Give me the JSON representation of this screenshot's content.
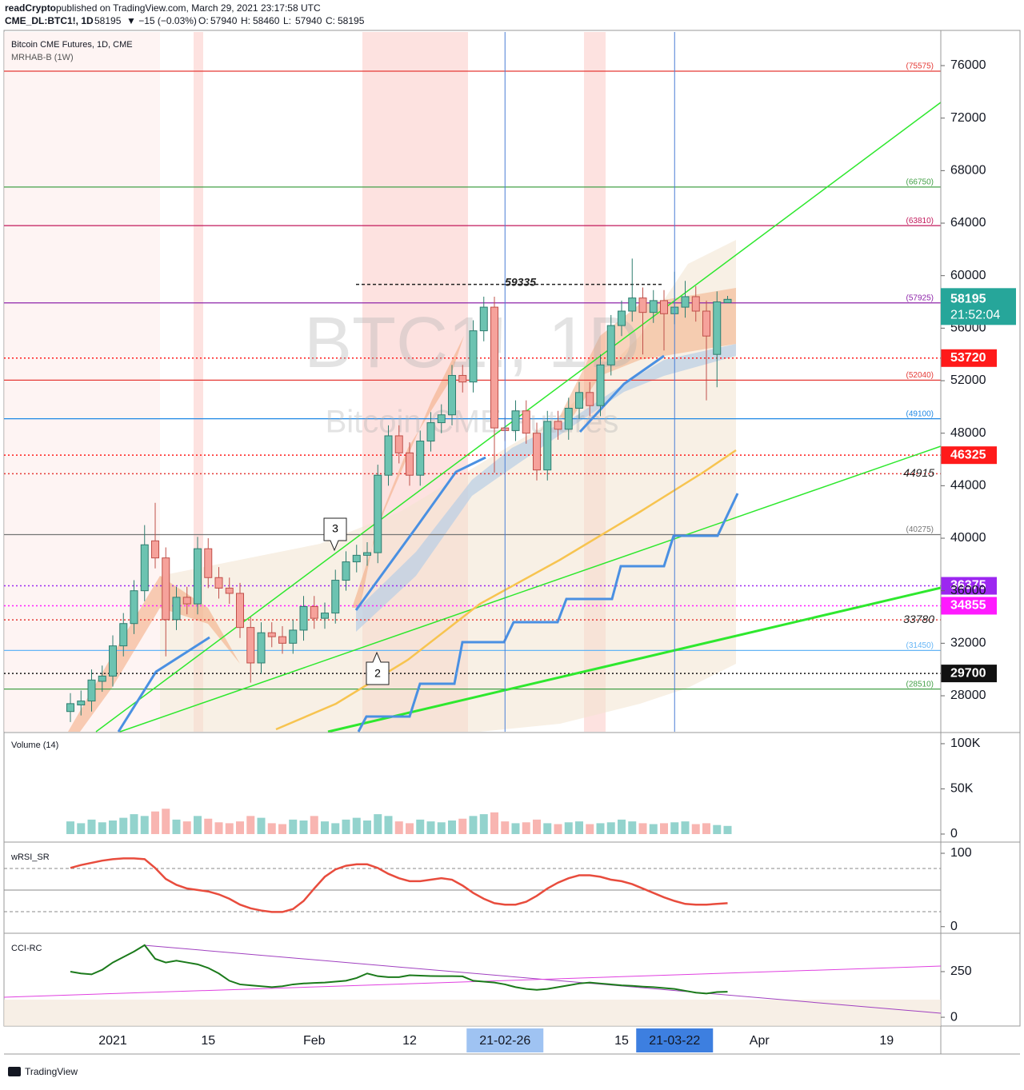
{
  "header": {
    "author": "readCrypto",
    "published": "published on TradingView.com, March 29, 2021 23:17:58 UTC",
    "symbol": "CME_DL:BTC1!, 1D",
    "last": 58195,
    "change": "▼ −15 (−0.03%)",
    "ohlc": [
      {
        "label": "O:",
        "value": 57940
      },
      {
        "label": "H:",
        "value": 58460
      },
      {
        "label": "L:",
        "value": 57940
      },
      {
        "label": "C:",
        "value": 58195
      }
    ]
  },
  "legend": [
    "Bitcoin CME Futures, 1D, CME",
    "MRHAB-B (1W)"
  ],
  "watermark": {
    "symbol": "BTC1!, 1D",
    "name": "Bitcoin CME Futures"
  },
  "callouts": [
    "3",
    "2"
  ],
  "footer": "TradingView",
  "chart_data": {
    "type": "candlestick",
    "categories": [
      null,
      null,
      null,
      null,
      "2021",
      null,
      null,
      null,
      null,
      null,
      null,
      null,
      null,
      "15",
      null,
      null,
      null,
      null,
      null,
      null,
      null,
      null,
      null,
      "Feb",
      null,
      null,
      null,
      null,
      null,
      null,
      null,
      null,
      "12",
      null,
      null,
      null,
      null,
      null,
      null,
      null,
      null,
      "21-02-26",
      null,
      null,
      null,
      null,
      null,
      null,
      null,
      null,
      null,
      null,
      "15",
      null,
      null,
      null,
      null,
      "21-03-22",
      null,
      null,
      null,
      null,
      null,
      null,
      null,
      "Apr",
      null,
      null,
      null,
      null,
      null,
      null,
      null,
      null,
      null,
      null,
      null,
      "19",
      null,
      null,
      null,
      null
    ],
    "open": [
      26800,
      27300,
      27600,
      29100,
      29500,
      31800,
      33500,
      36000,
      39800,
      38500,
      33800,
      35500,
      35000,
      39200,
      37000,
      36200,
      35800,
      33200,
      30500,
      32800,
      32500,
      32000,
      33000,
      34800,
      33900,
      34300,
      36800,
      38200,
      38700,
      38900,
      44800,
      47800,
      46500,
      44800,
      47400,
      48800,
      49400,
      52400,
      51900,
      55800,
      57600,
      48400,
      48200,
      49700,
      48000,
      45200,
      48900,
      48300,
      49900,
      51100,
      50100,
      53200,
      56200,
      57300,
      58300,
      57200,
      58100,
      57100,
      57600,
      58400,
      57300,
      54000,
      57940,
      null,
      null,
      null,
      null,
      null,
      null,
      null,
      null,
      null,
      null,
      null,
      null,
      null,
      null,
      null,
      null,
      null,
      null,
      null
    ],
    "high": [
      28200,
      28400,
      30000,
      30300,
      32600,
      34300,
      36800,
      41000,
      42700,
      39300,
      36300,
      36300,
      40100,
      40000,
      37800,
      37000,
      36600,
      34000,
      33600,
      33600,
      33300,
      33800,
      35600,
      35600,
      35100,
      37600,
      39000,
      39500,
      39700,
      45600,
      48600,
      48600,
      47300,
      48200,
      49600,
      50200,
      53200,
      53200,
      56600,
      58400,
      58400,
      49200,
      50500,
      50500,
      48800,
      49700,
      49700,
      50700,
      51900,
      51900,
      54000,
      57000,
      58100,
      61300,
      59100,
      58900,
      58900,
      60300,
      59600,
      59200,
      58100,
      58800,
      58460,
      null,
      null,
      null,
      null,
      null,
      null,
      null,
      null,
      null,
      null,
      null,
      null,
      null,
      null,
      null,
      null,
      null,
      null,
      null
    ],
    "low": [
      26000,
      26500,
      26800,
      28300,
      28700,
      31000,
      32700,
      35200,
      37700,
      31000,
      33000,
      34200,
      34200,
      36200,
      35400,
      35000,
      32400,
      29000,
      29700,
      31700,
      31200,
      31200,
      32200,
      33100,
      33100,
      33500,
      36000,
      37400,
      37900,
      38100,
      44000,
      45700,
      44000,
      44000,
      46600,
      48000,
      48600,
      51100,
      51100,
      55000,
      45000,
      47400,
      47400,
      47200,
      44400,
      44400,
      47500,
      47500,
      49100,
      49300,
      49300,
      52400,
      55400,
      56500,
      54000,
      56400,
      54300,
      56300,
      56800,
      56500,
      50500,
      51500,
      57940,
      null,
      null,
      null,
      null,
      null,
      null,
      null,
      null,
      null,
      null,
      null,
      null,
      null,
      null,
      null,
      null,
      null,
      null,
      null
    ],
    "close": [
      27400,
      27600,
      29200,
      29500,
      31800,
      33500,
      36000,
      39500,
      38500,
      33800,
      35500,
      35000,
      39200,
      37000,
      36200,
      35800,
      33200,
      30500,
      32800,
      32500,
      32000,
      33000,
      34800,
      33900,
      34300,
      36800,
      38200,
      38700,
      38900,
      44800,
      47800,
      46500,
      44800,
      47400,
      48800,
      49400,
      52400,
      51900,
      55800,
      57600,
      48400,
      48200,
      49700,
      48000,
      45200,
      48900,
      48300,
      49900,
      51100,
      50100,
      53200,
      56200,
      57300,
      58300,
      57200,
      58100,
      57100,
      57600,
      58400,
      57300,
      55400,
      58000,
      58195,
      null,
      null,
      null,
      null,
      null,
      null,
      null,
      null,
      null,
      null,
      null,
      null,
      null,
      null,
      null,
      null,
      null,
      null,
      null
    ],
    "up_color": "#6cc3b1",
    "down_color": "#f6a29b",
    "ylim": [
      25260,
      78560
    ],
    "yticks": [
      28000,
      32000,
      36000,
      40000,
      44000,
      48000,
      52000,
      56000,
      60000,
      64000,
      68000,
      72000,
      76000
    ],
    "levels": [
      {
        "value": 75575,
        "label": "(75575)",
        "color": "#e53935"
      },
      {
        "value": 66750,
        "label": "(66750)",
        "color": "#43a047"
      },
      {
        "value": 63810,
        "label": "(63810)",
        "color": "#c2185b"
      },
      {
        "value": 57925,
        "label": "(57925)",
        "color": "#8e24aa"
      },
      {
        "value": 52040,
        "label": "(52040)",
        "color": "#e53935"
      },
      {
        "value": 49100,
        "label": "(49100)",
        "color": "#1e88e5"
      },
      {
        "value": 40275,
        "label": "(40275)",
        "color": "#757575"
      },
      {
        "value": 31450,
        "label": "(31450)",
        "color": "#64b5f6"
      },
      {
        "value": 28510,
        "label": "(28510)",
        "color": "#43a047"
      }
    ],
    "marked": [
      {
        "value": 59335,
        "color": "#222"
      },
      {
        "value": 44915,
        "color": "#e53935"
      },
      {
        "value": 33780,
        "color": "#e53935"
      }
    ],
    "badges": [
      {
        "value": 53720,
        "color": "#ff1a1a"
      },
      {
        "value": 46325,
        "color": "#ff1a1a"
      },
      {
        "value": 36375,
        "color": "#9c27f0"
      },
      {
        "value": 34855,
        "color": "#ff1aff"
      },
      {
        "value": 29700,
        "color": "#111111"
      }
    ],
    "last_badge": {
      "value": 58195,
      "countdown": "21:52:04",
      "color": "#26a69a"
    },
    "volume_label": "Volume (14)",
    "volume": [
      14000,
      12000,
      16000,
      13000,
      15000,
      18000,
      22000,
      20000,
      25000,
      28000,
      16000,
      14000,
      20000,
      17000,
      13000,
      12000,
      14000,
      20000,
      18000,
      12000,
      11000,
      16000,
      15000,
      20000,
      14000,
      12000,
      16000,
      18000,
      15000,
      22000,
      20000,
      14000,
      12000,
      16000,
      14000,
      13000,
      15000,
      17000,
      20000,
      22000,
      24000,
      14000,
      12000,
      13000,
      16000,
      12000,
      11000,
      13000,
      14000,
      11000,
      12000,
      13000,
      16000,
      14000,
      12000,
      11000,
      12000,
      13000,
      14000,
      11000,
      12000,
      10000,
      9000,
      null,
      null,
      null,
      null,
      null,
      null,
      null,
      null,
      null,
      null,
      null,
      null,
      null,
      null,
      null,
      null,
      null,
      null,
      null
    ],
    "volume_ylim": [
      -8000,
      108800
    ],
    "volume_ticks": [
      {
        "value": 100000,
        "label": "100K"
      },
      {
        "value": 50000,
        "label": "50K"
      },
      0
    ],
    "rsi_label": "wRSI_SR",
    "rsi": [
      80,
      84,
      87,
      90,
      92,
      93,
      93,
      92,
      80,
      65,
      57,
      52,
      50,
      48,
      44,
      38,
      30,
      25,
      22,
      20,
      20,
      24,
      35,
      52,
      68,
      78,
      83,
      85,
      85,
      80,
      72,
      66,
      62,
      62,
      64,
      66,
      64,
      56,
      46,
      38,
      32,
      30,
      30,
      34,
      42,
      52,
      60,
      66,
      70,
      70,
      68,
      64,
      62,
      58,
      52,
      46,
      40,
      35,
      31,
      30,
      30,
      31,
      32,
      null,
      null,
      null,
      null,
      null,
      null,
      null,
      null,
      null,
      null,
      null,
      null,
      null,
      null,
      null,
      null,
      null,
      null,
      null
    ],
    "rsi_ylim": [
      -9,
      112
    ],
    "rsi_ticks": [
      0,
      100
    ],
    "cci_label": "CCI-RC",
    "cci": [
      250,
      240,
      235,
      260,
      300,
      330,
      360,
      395,
      320,
      300,
      310,
      300,
      290,
      270,
      240,
      200,
      180,
      175,
      170,
      165,
      170,
      180,
      185,
      188,
      190,
      195,
      200,
      215,
      240,
      225,
      220,
      220,
      230,
      228,
      226,
      225,
      225,
      224,
      200,
      195,
      190,
      180,
      165,
      155,
      150,
      155,
      165,
      175,
      185,
      190,
      185,
      180,
      175,
      172,
      168,
      165,
      160,
      155,
      145,
      135,
      130,
      138,
      140,
      null,
      null,
      null,
      null,
      null,
      null,
      null,
      null,
      null,
      null,
      null,
      null,
      null,
      null,
      null,
      null,
      null,
      null,
      null
    ],
    "cci_ylim": [
      -48,
      447
    ],
    "cci_ticks": [
      0,
      250
    ],
    "line_color": "#1b7a1b"
  }
}
